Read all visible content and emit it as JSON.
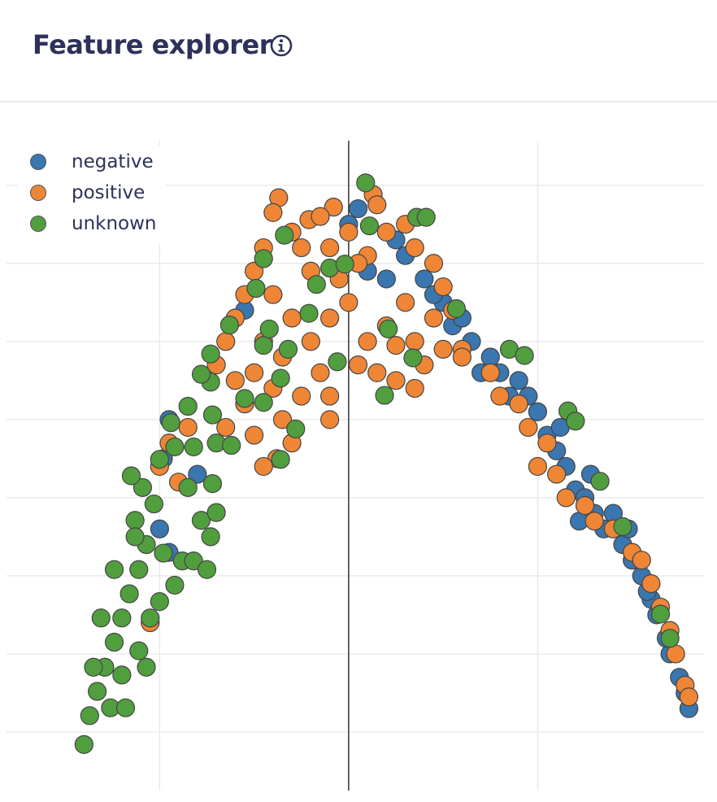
{
  "header": {
    "title": "Feature explorer",
    "info_icon": "info-circle-icon"
  },
  "chart_data": {
    "type": "scatter",
    "title": "",
    "xlabel": "",
    "ylabel": "",
    "xlim": [
      -1.81,
      1.88
    ],
    "ylim": [
      -0.75,
      7.57
    ],
    "grid": true,
    "zero_line_x": 0,
    "legend": "top-left",
    "marker_outline": "#444444",
    "series": [
      {
        "name": "negative",
        "color": "#3a76af",
        "points": [
          [
            0.05,
            6.7
          ],
          [
            0.3,
            6.1
          ],
          [
            0.4,
            5.8
          ],
          [
            0.5,
            5.5
          ],
          [
            0.55,
            5.2
          ],
          [
            0.65,
            5.0
          ],
          [
            0.7,
            4.6
          ],
          [
            0.8,
            4.6
          ],
          [
            0.9,
            4.5
          ],
          [
            0.95,
            4.3
          ],
          [
            1.0,
            4.1
          ],
          [
            1.05,
            3.8
          ],
          [
            1.1,
            3.6
          ],
          [
            1.15,
            3.4
          ],
          [
            1.2,
            3.1
          ],
          [
            1.25,
            3.0
          ],
          [
            1.3,
            2.8
          ],
          [
            1.35,
            2.6
          ],
          [
            1.4,
            2.8
          ],
          [
            1.45,
            2.4
          ],
          [
            1.5,
            2.2
          ],
          [
            1.55,
            2.0
          ],
          [
            1.6,
            1.7
          ],
          [
            1.63,
            1.5
          ],
          [
            1.7,
            1.0
          ],
          [
            1.75,
            0.7
          ],
          [
            1.78,
            0.5
          ],
          [
            1.8,
            0.3
          ],
          [
            -0.95,
            4.0
          ],
          [
            -0.98,
            3.5
          ],
          [
            -0.95,
            2.3
          ],
          [
            -0.8,
            3.3
          ],
          [
            -1.0,
            2.6
          ],
          [
            0.0,
            6.5
          ],
          [
            0.25,
            6.3
          ],
          [
            0.45,
            5.6
          ],
          [
            0.6,
            5.3
          ],
          [
            0.2,
            5.8
          ],
          [
            1.28,
            3.3
          ],
          [
            1.12,
            3.9
          ],
          [
            1.48,
            2.6
          ],
          [
            1.68,
            1.2
          ],
          [
            0.85,
            4.3
          ],
          [
            0.75,
            4.8
          ],
          [
            1.22,
            2.7
          ],
          [
            1.58,
            1.8
          ],
          [
            -0.55,
            5.4
          ],
          [
            0.1,
            5.9
          ]
        ]
      },
      {
        "name": "positive",
        "color": "#ef8636",
        "points": [
          [
            -0.37,
            6.84
          ],
          [
            -0.4,
            6.65
          ],
          [
            0.13,
            6.88
          ],
          [
            0.15,
            6.75
          ],
          [
            -0.08,
            6.72
          ],
          [
            -0.21,
            6.56
          ],
          [
            -0.3,
            6.4
          ],
          [
            -0.45,
            6.2
          ],
          [
            -0.5,
            5.9
          ],
          [
            -0.55,
            5.6
          ],
          [
            -0.6,
            5.3
          ],
          [
            -0.65,
            5.0
          ],
          [
            -0.7,
            4.7
          ],
          [
            -0.6,
            4.5
          ],
          [
            -0.5,
            4.6
          ],
          [
            -0.4,
            4.4
          ],
          [
            -0.35,
            4.0
          ],
          [
            -0.3,
            3.7
          ],
          [
            -0.38,
            3.5
          ],
          [
            -0.25,
            4.3
          ],
          [
            -0.15,
            4.6
          ],
          [
            -0.1,
            4.3
          ],
          [
            -0.2,
            5.0
          ],
          [
            -0.3,
            5.3
          ],
          [
            -0.4,
            5.6
          ],
          [
            -0.2,
            5.9
          ],
          [
            -0.1,
            6.2
          ],
          [
            0.0,
            6.4
          ],
          [
            0.1,
            6.1
          ],
          [
            0.2,
            6.4
          ],
          [
            0.3,
            6.5
          ],
          [
            0.35,
            6.2
          ],
          [
            0.45,
            6.0
          ],
          [
            0.5,
            5.7
          ],
          [
            0.55,
            5.4
          ],
          [
            0.45,
            5.3
          ],
          [
            0.3,
            5.5
          ],
          [
            0.2,
            5.2
          ],
          [
            0.1,
            5.0
          ],
          [
            0.05,
            4.7
          ],
          [
            0.15,
            4.6
          ],
          [
            0.25,
            4.95
          ],
          [
            0.35,
            5.0
          ],
          [
            0.4,
            4.7
          ],
          [
            0.5,
            4.9
          ],
          [
            0.6,
            4.9
          ],
          [
            0.0,
            5.5
          ],
          [
            -0.05,
            5.8
          ],
          [
            -0.25,
            6.2
          ],
          [
            -0.15,
            6.6
          ],
          [
            0.05,
            6.0
          ],
          [
            -0.45,
            5.0
          ],
          [
            -0.55,
            4.2
          ],
          [
            -0.65,
            3.9
          ],
          [
            -0.5,
            3.8
          ],
          [
            -0.45,
            3.4
          ],
          [
            -0.1,
            4.0
          ],
          [
            0.25,
            4.5
          ],
          [
            0.35,
            4.4
          ],
          [
            -0.35,
            4.8
          ],
          [
            -0.1,
            5.3
          ],
          [
            0.6,
            4.8
          ],
          [
            0.75,
            4.6
          ],
          [
            0.8,
            4.3
          ],
          [
            0.9,
            4.2
          ],
          [
            0.95,
            3.9
          ],
          [
            1.05,
            3.7
          ],
          [
            1.0,
            3.4
          ],
          [
            1.1,
            3.3
          ],
          [
            1.15,
            3.0
          ],
          [
            1.25,
            2.9
          ],
          [
            1.3,
            2.7
          ],
          [
            1.4,
            2.6
          ],
          [
            1.5,
            2.3
          ],
          [
            1.55,
            2.2
          ],
          [
            1.6,
            1.9
          ],
          [
            1.65,
            1.6
          ],
          [
            1.7,
            1.3
          ],
          [
            1.73,
            1.0
          ],
          [
            1.78,
            0.6
          ],
          [
            1.8,
            0.45
          ],
          [
            -1.0,
            3.4
          ],
          [
            -0.95,
            3.7
          ],
          [
            -0.85,
            3.9
          ],
          [
            -0.9,
            3.2
          ],
          [
            -1.05,
            1.4
          ]
        ]
      },
      {
        "name": "unknown",
        "color": "#519e3e",
        "points": [
          [
            -1.4,
            -0.16
          ],
          [
            -1.37,
            0.21
          ],
          [
            -1.33,
            0.52
          ],
          [
            -1.29,
            0.83
          ],
          [
            -1.24,
            1.15
          ],
          [
            -1.2,
            1.46
          ],
          [
            -1.16,
            1.77
          ],
          [
            -1.11,
            2.08
          ],
          [
            -1.07,
            2.4
          ],
          [
            -1.13,
            2.71
          ],
          [
            -1.09,
            3.13
          ],
          [
            -1.15,
            3.28
          ],
          [
            -1.03,
            2.92
          ],
          [
            -1.2,
            0.73
          ],
          [
            -1.11,
            1.04
          ],
          [
            -1.05,
            1.46
          ],
          [
            -1.0,
            1.67
          ],
          [
            -1.26,
            0.31
          ],
          [
            -1.31,
            1.46
          ],
          [
            -1.24,
            2.08
          ],
          [
            -0.98,
            2.29
          ],
          [
            -0.92,
            1.88
          ],
          [
            -0.88,
            2.19
          ],
          [
            -0.82,
            2.19
          ],
          [
            -0.75,
            2.08
          ],
          [
            -0.73,
            2.5
          ],
          [
            -0.78,
            2.71
          ],
          [
            -0.7,
            2.81
          ],
          [
            -0.72,
            3.18
          ],
          [
            -0.85,
            3.13
          ],
          [
            -0.92,
            3.65
          ],
          [
            -0.82,
            3.65
          ],
          [
            -0.7,
            3.7
          ],
          [
            -0.85,
            4.17
          ],
          [
            -0.72,
            4.06
          ],
          [
            -0.62,
            3.67
          ],
          [
            -0.55,
            4.27
          ],
          [
            -0.73,
            4.48
          ],
          [
            -0.78,
            4.58
          ],
          [
            -0.73,
            4.84
          ],
          [
            -0.63,
            5.21
          ],
          [
            -0.45,
            4.22
          ],
          [
            -0.36,
            4.53
          ],
          [
            -0.45,
            4.95
          ],
          [
            -0.42,
            5.16
          ],
          [
            -0.32,
            4.9
          ],
          [
            -0.49,
            5.68
          ],
          [
            -0.45,
            6.06
          ],
          [
            -0.34,
            6.36
          ],
          [
            -0.17,
            5.73
          ],
          [
            -0.21,
            5.36
          ],
          [
            -0.1,
            5.94
          ],
          [
            -0.02,
            5.99
          ],
          [
            -0.06,
            4.74
          ],
          [
            -0.36,
            3.49
          ],
          [
            -0.28,
            3.88
          ],
          [
            0.09,
            7.03
          ],
          [
            0.11,
            6.48
          ],
          [
            0.36,
            6.59
          ],
          [
            0.41,
            6.59
          ],
          [
            0.21,
            5.16
          ],
          [
            0.19,
            4.31
          ],
          [
            0.34,
            4.79
          ],
          [
            0.57,
            5.42
          ],
          [
            0.85,
            4.9
          ],
          [
            0.93,
            4.82
          ],
          [
            1.16,
            4.11
          ],
          [
            1.2,
            3.98
          ],
          [
            1.33,
            3.21
          ],
          [
            1.45,
            2.63
          ],
          [
            1.65,
            1.51
          ],
          [
            1.7,
            1.2
          ],
          [
            -1.0,
            3.49
          ],
          [
            -0.94,
            3.96
          ],
          [
            -1.13,
            2.5
          ],
          [
            -1.35,
            0.83
          ],
          [
            -1.18,
            0.31
          ],
          [
            -1.07,
            0.83
          ]
        ]
      }
    ]
  }
}
